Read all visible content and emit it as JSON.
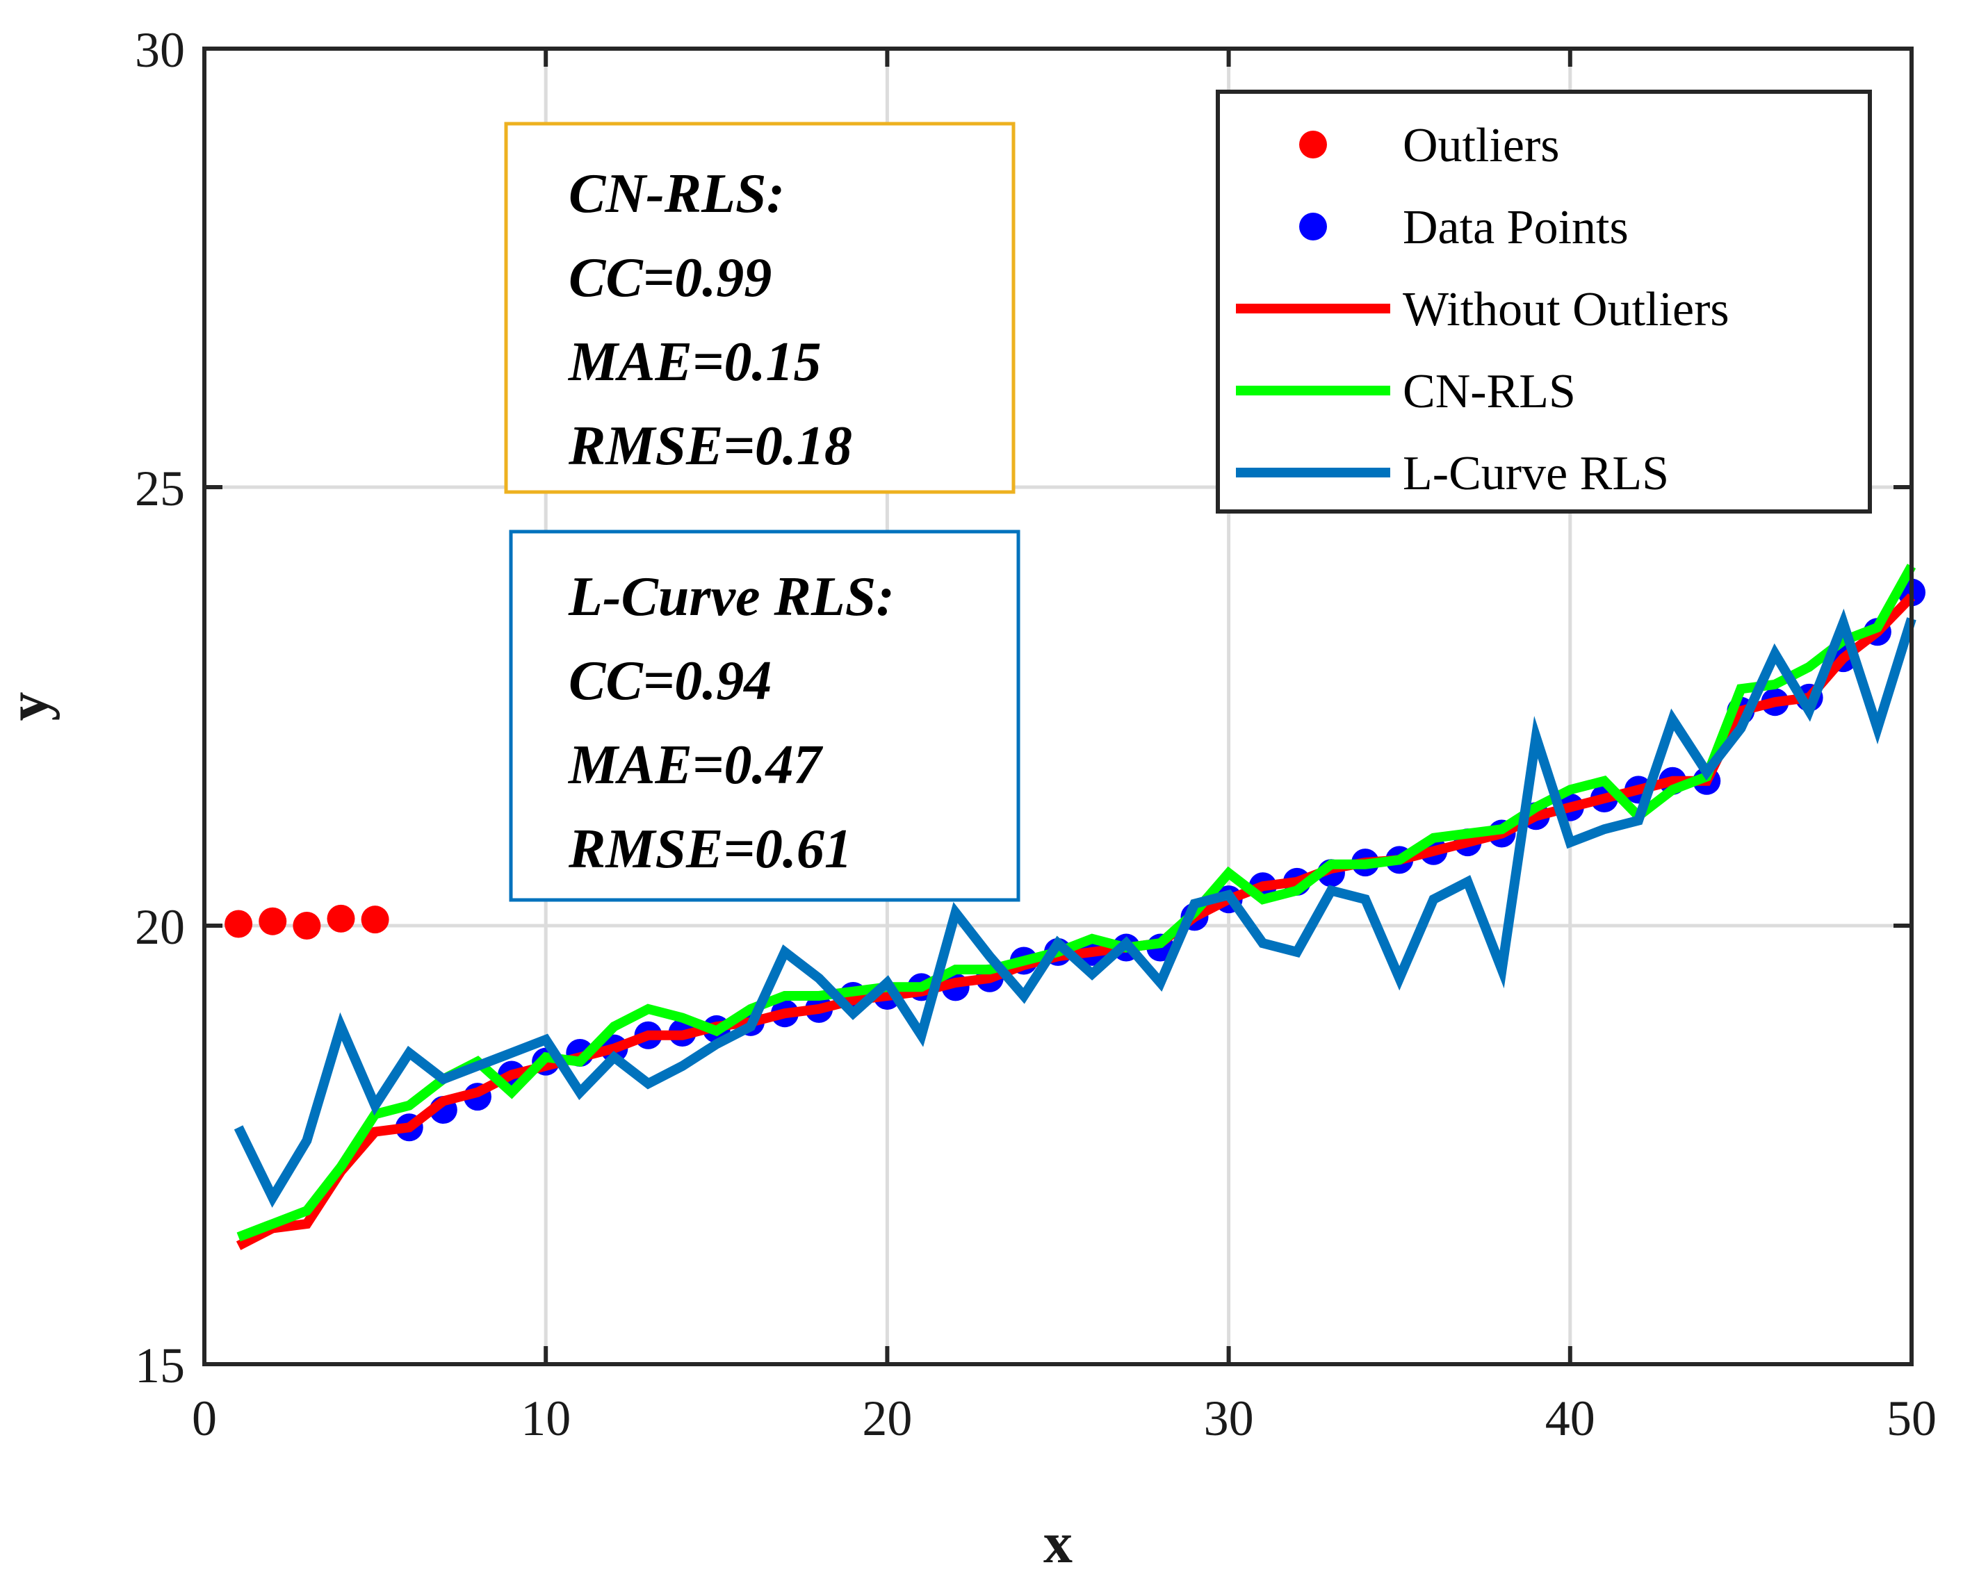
{
  "chart_data": {
    "type": "line",
    "title": "",
    "xlabel": "x",
    "ylabel": "y",
    "xlim": [
      0,
      50
    ],
    "ylim": [
      15,
      30
    ],
    "xticks": [
      "0",
      "10",
      "20",
      "30",
      "40",
      "50"
    ],
    "yticks": [
      "15",
      "20",
      "25",
      "30"
    ],
    "grid": true,
    "legend_position": "top-right",
    "series": [
      {
        "name": "Outliers",
        "kind": "scatter",
        "color": "#ff0000",
        "x": [
          1,
          2,
          3,
          4,
          5
        ],
        "y": [
          20.02,
          20.05,
          20.0,
          20.08,
          20.07
        ]
      },
      {
        "name": "Data Points",
        "kind": "scatter",
        "color": "#0000ff",
        "x": [
          6,
          7,
          8,
          9,
          10,
          11,
          12,
          13,
          14,
          15,
          16,
          17,
          18,
          19,
          20,
          21,
          22,
          23,
          24,
          25,
          26,
          27,
          28,
          29,
          30,
          31,
          32,
          33,
          34,
          35,
          36,
          37,
          38,
          39,
          40,
          41,
          42,
          43,
          44,
          45,
          46,
          47,
          48,
          49,
          50
        ],
        "y": [
          17.7,
          17.9,
          18.05,
          18.3,
          18.45,
          18.55,
          18.6,
          18.75,
          18.78,
          18.82,
          18.9,
          19.0,
          19.05,
          19.2,
          19.2,
          19.3,
          19.3,
          19.4,
          19.6,
          19.7,
          19.7,
          19.75,
          19.75,
          20.1,
          20.3,
          20.45,
          20.5,
          20.6,
          20.72,
          20.75,
          20.85,
          20.95,
          21.05,
          21.25,
          21.35,
          21.45,
          21.55,
          21.65,
          21.65,
          22.45,
          22.55,
          22.6,
          23.05,
          23.35,
          23.8
        ]
      },
      {
        "name": "Without Outliers",
        "kind": "line",
        "color": "#ff0000",
        "x": [
          1,
          2,
          3,
          4,
          5,
          6,
          7,
          8,
          9,
          10,
          11,
          12,
          13,
          14,
          15,
          16,
          17,
          18,
          19,
          20,
          21,
          22,
          23,
          24,
          25,
          26,
          27,
          28,
          29,
          30,
          31,
          32,
          33,
          34,
          35,
          36,
          37,
          38,
          39,
          40,
          41,
          42,
          43,
          44,
          45,
          46,
          47,
          48,
          49,
          50
        ],
        "y": [
          16.35,
          16.55,
          16.6,
          17.2,
          17.65,
          17.7,
          18.0,
          18.1,
          18.3,
          18.4,
          18.5,
          18.6,
          18.75,
          18.75,
          18.85,
          18.9,
          19.0,
          19.05,
          19.15,
          19.2,
          19.25,
          19.35,
          19.4,
          19.55,
          19.65,
          19.7,
          19.75,
          19.8,
          20.1,
          20.3,
          20.45,
          20.5,
          20.65,
          20.72,
          20.75,
          20.85,
          20.95,
          21.05,
          21.25,
          21.35,
          21.45,
          21.55,
          21.65,
          21.65,
          22.45,
          22.55,
          22.6,
          23.05,
          23.35,
          23.75
        ]
      },
      {
        "name": "CN-RLS",
        "kind": "line",
        "color": "#00ff00",
        "x": [
          1,
          2,
          3,
          4,
          5,
          6,
          7,
          8,
          9,
          10,
          11,
          12,
          13,
          14,
          15,
          16,
          17,
          18,
          19,
          20,
          21,
          22,
          23,
          24,
          25,
          26,
          27,
          28,
          29,
          30,
          31,
          32,
          33,
          34,
          35,
          36,
          37,
          38,
          39,
          40,
          41,
          42,
          43,
          44,
          45,
          46,
          47,
          48,
          49,
          50
        ],
        "y": [
          16.45,
          16.6,
          16.75,
          17.25,
          17.85,
          17.95,
          18.25,
          18.45,
          18.1,
          18.5,
          18.45,
          18.85,
          19.05,
          18.95,
          18.8,
          19.05,
          19.2,
          19.2,
          19.25,
          19.3,
          19.3,
          19.5,
          19.5,
          19.6,
          19.7,
          19.85,
          19.75,
          19.8,
          20.15,
          20.6,
          20.3,
          20.4,
          20.7,
          20.7,
          20.75,
          21.0,
          21.05,
          21.1,
          21.35,
          21.55,
          21.65,
          21.25,
          21.55,
          21.7,
          22.7,
          22.75,
          22.95,
          23.25,
          23.4,
          24.1
        ]
      },
      {
        "name": "L-Curve RLS",
        "kind": "line",
        "color": "#0072bd",
        "x": [
          1,
          2,
          3,
          4,
          5,
          6,
          7,
          8,
          9,
          10,
          11,
          12,
          13,
          14,
          15,
          16,
          17,
          18,
          19,
          20,
          21,
          22,
          23,
          24,
          25,
          26,
          27,
          28,
          29,
          30,
          31,
          32,
          33,
          34,
          35,
          36,
          37,
          38,
          39,
          40,
          41,
          42,
          43,
          44,
          45,
          46,
          47,
          48,
          49,
          50
        ],
        "y": [
          17.7,
          16.9,
          17.55,
          18.85,
          17.95,
          18.55,
          18.25,
          18.4,
          18.55,
          18.7,
          18.1,
          18.5,
          18.2,
          18.4,
          18.65,
          18.85,
          19.7,
          19.4,
          19.0,
          19.35,
          18.75,
          20.15,
          19.65,
          19.2,
          19.8,
          19.45,
          19.8,
          19.35,
          20.25,
          20.35,
          19.8,
          19.7,
          20.4,
          20.3,
          19.4,
          20.3,
          20.5,
          19.5,
          22.15,
          20.95,
          21.1,
          21.2,
          22.35,
          21.75,
          22.25,
          23.1,
          22.45,
          23.45,
          22.25,
          23.5
        ]
      }
    ],
    "annotations": [
      {
        "border_color": "#edb120",
        "lines": [
          "CN-RLS:",
          "CC=0.99",
          "MAE=0.15",
          "RMSE=0.18"
        ]
      },
      {
        "border_color": "#0072bd",
        "lines": [
          "L-Curve RLS:",
          "CC=0.94",
          "MAE=0.47",
          "RMSE=0.61"
        ]
      }
    ]
  }
}
